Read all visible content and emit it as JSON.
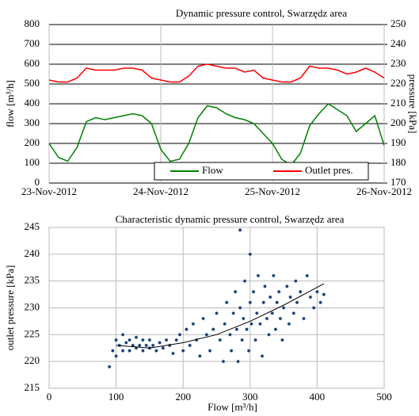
{
  "chart_data": [
    {
      "type": "line",
      "title": "Dynamic pressure control, Swarzędz area",
      "y_label": "flow [m³/h]",
      "y2_label": "pressure [kPa]",
      "x": [
        0,
        2,
        4,
        6,
        8,
        10,
        12,
        14,
        16,
        18,
        20,
        22,
        24,
        26,
        28,
        30,
        32,
        34,
        36,
        38,
        40,
        42,
        44,
        46,
        48,
        50,
        52,
        54,
        56,
        58,
        60,
        62,
        64,
        66,
        68,
        70,
        72
      ],
      "xlim": [
        0,
        72
      ],
      "xticks": [
        {
          "value": 0,
          "label": "23-Nov-2012"
        },
        {
          "value": 24,
          "label": "24-Nov-2012"
        },
        {
          "value": 48,
          "label": "25-Nov-2012"
        },
        {
          "value": 72,
          "label": "26-Nov-2012"
        }
      ],
      "ylim": [
        0,
        800
      ],
      "yticks": [
        0,
        100,
        200,
        300,
        400,
        500,
        600,
        700,
        800
      ],
      "y2lim": [
        170,
        250
      ],
      "y2ticks": [
        170,
        180,
        190,
        200,
        210,
        220,
        230,
        240,
        250
      ],
      "grid": true,
      "legend": "lower right",
      "series": [
        {
          "name": "Flow",
          "color": "#008000",
          "values": [
            200,
            130,
            110,
            180,
            310,
            330,
            320,
            330,
            340,
            350,
            340,
            300,
            170,
            110,
            120,
            200,
            330,
            390,
            380,
            350,
            330,
            320,
            300,
            250,
            200,
            120,
            90,
            150,
            290,
            350,
            400,
            370,
            340,
            260,
            300,
            340,
            190
          ]
        },
        {
          "name": "Outlet pres.",
          "color": "#ff0000",
          "axis": "y2",
          "values": [
            222,
            221,
            221,
            223,
            228,
            227,
            227,
            227,
            228,
            228,
            227,
            223,
            222,
            221,
            221,
            224,
            229,
            230,
            229,
            228,
            228,
            226,
            227,
            223,
            222,
            221,
            221,
            223,
            229,
            228,
            228,
            227,
            225,
            226,
            228,
            226,
            223
          ]
        }
      ]
    },
    {
      "type": "scatter",
      "title": "Characteristic dynamic pressure control, Swarzędz area",
      "x_label": "Flow [m³/h]",
      "y_label": "outlet pressure [kPa]",
      "xlim": [
        0,
        500
      ],
      "xticks": [
        0,
        100,
        200,
        300,
        400,
        500
      ],
      "ylim": [
        215,
        245
      ],
      "yticks": [
        215,
        220,
        225,
        230,
        235,
        240,
        245
      ],
      "grid": true,
      "series": [
        {
          "color": "#1f3864",
          "x": [
            90,
            95,
            100,
            100,
            105,
            110,
            110,
            115,
            120,
            120,
            125,
            130,
            130,
            135,
            140,
            140,
            145,
            150,
            150,
            155,
            160,
            165,
            170,
            175,
            180,
            185,
            190,
            195,
            200,
            205,
            210,
            215,
            220,
            225,
            230,
            235,
            240,
            245,
            250,
            255,
            260,
            262,
            265,
            270,
            272,
            275,
            278,
            280,
            282,
            285,
            285,
            288,
            290,
            292,
            295,
            298,
            300,
            300,
            302,
            305,
            308,
            310,
            312,
            315,
            318,
            320,
            322,
            325,
            328,
            330,
            333,
            335,
            338,
            340,
            343,
            345,
            348,
            350,
            355,
            358,
            360,
            365,
            368,
            370,
            375,
            380,
            385,
            390,
            395,
            400,
            405,
            410
          ],
          "values": [
            219,
            222,
            224,
            221,
            223,
            225,
            222,
            223.5,
            222,
            224,
            223,
            222.5,
            224.5,
            223,
            222,
            224,
            223,
            222.5,
            224,
            223,
            222,
            223.5,
            222.5,
            224,
            223,
            221.5,
            224,
            225,
            222,
            226,
            223,
            227,
            224,
            221,
            228,
            225,
            222,
            226,
            229,
            224,
            220,
            227,
            231,
            225,
            222,
            229,
            233,
            226,
            220,
            244.5,
            230,
            224,
            228,
            235,
            226,
            222,
            240,
            231,
            227,
            233,
            224,
            229,
            236,
            227,
            221,
            231,
            234,
            228,
            225,
            232,
            229,
            236,
            226,
            231,
            233,
            228,
            224,
            230,
            234,
            227,
            232,
            229,
            235,
            231,
            233,
            228,
            236,
            232,
            230,
            233,
            231,
            232.5
          ]
        }
      ],
      "trendline": {
        "color": "#000000",
        "x": [
          100,
          150,
          200,
          250,
          300,
          350,
          410
        ],
        "values": [
          223,
          222.5,
          223.5,
          225,
          227.5,
          230.5,
          234.5
        ]
      }
    }
  ]
}
